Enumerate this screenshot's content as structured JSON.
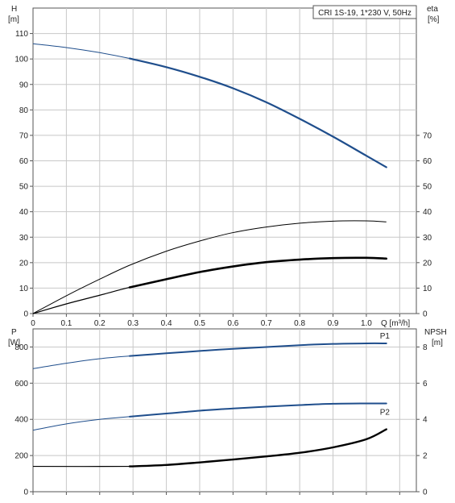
{
  "chart_data": [
    {
      "type": "line",
      "name": "head-efficiency",
      "title": "CRI 1S-19, 1*230 V, 50Hz",
      "xlabel": "Q [m³/h]",
      "ylabel_left_top": "H",
      "ylabel_left_bottom": "[m]",
      "ylabel_right_top": "eta",
      "ylabel_right_bottom": "[%]",
      "xlim": [
        0,
        1.15
      ],
      "ylim_left": [
        0,
        120
      ],
      "ylim_right": [
        0,
        120
      ],
      "x_ticks": [
        "0",
        "0.1",
        "0.2",
        "0.3",
        "0.4",
        "0.5",
        "0.6",
        "0.7",
        "0.8",
        "0.9",
        "1.0"
      ],
      "y_ticks_left": [
        "0",
        "10",
        "20",
        "30",
        "40",
        "50",
        "60",
        "70",
        "80",
        "90",
        "100",
        "110"
      ],
      "y_ticks_right": [
        "0",
        "10",
        "20",
        "30",
        "40",
        "50",
        "60",
        "70"
      ],
      "grid": true,
      "series": [
        {
          "role": "head",
          "color": "#1f4e8c",
          "axis": "left",
          "points": [
            [
              0.0,
              106
            ],
            [
              0.1,
              104.5
            ],
            [
              0.2,
              102.5
            ],
            [
              0.29,
              100.2
            ],
            [
              0.4,
              96.8
            ],
            [
              0.5,
              93.0
            ],
            [
              0.6,
              88.5
            ],
            [
              0.7,
              83.0
            ],
            [
              0.8,
              76.5
            ],
            [
              0.9,
              69.5
            ],
            [
              1.0,
              62.0
            ],
            [
              1.06,
              57.5
            ]
          ],
          "duty_from": 0.29
        },
        {
          "role": "efficiency-thin",
          "color": "#000000",
          "axis": "right",
          "points": [
            [
              0.0,
              0
            ],
            [
              0.1,
              7.0
            ],
            [
              0.2,
              13.5
            ],
            [
              0.29,
              19.0
            ],
            [
              0.4,
              24.5
            ],
            [
              0.5,
              28.5
            ],
            [
              0.6,
              31.8
            ],
            [
              0.7,
              34.0
            ],
            [
              0.8,
              35.5
            ],
            [
              0.9,
              36.3
            ],
            [
              1.0,
              36.4
            ],
            [
              1.06,
              36.0
            ]
          ],
          "duty_from": 1.2
        },
        {
          "role": "efficiency-thick",
          "color": "#000000",
          "axis": "right",
          "points": [
            [
              0.0,
              0
            ],
            [
              0.1,
              3.8
            ],
            [
              0.2,
              7.2
            ],
            [
              0.29,
              10.3
            ],
            [
              0.4,
              13.5
            ],
            [
              0.5,
              16.3
            ],
            [
              0.6,
              18.5
            ],
            [
              0.7,
              20.2
            ],
            [
              0.8,
              21.2
            ],
            [
              0.9,
              21.8
            ],
            [
              1.0,
              21.9
            ],
            [
              1.06,
              21.6
            ]
          ],
          "duty_from": 0.29
        }
      ]
    },
    {
      "type": "line",
      "name": "power-npsh",
      "xlim": [
        0,
        1.15
      ],
      "ylabel_left_top": "P",
      "ylabel_left_bottom": "[W]",
      "ylabel_right_top": "NPSH",
      "ylabel_right_bottom": "[m]",
      "ylim_left": [
        0,
        900
      ],
      "ylim_right": [
        0,
        9
      ],
      "y_ticks_left": [
        "0",
        "200",
        "400",
        "600",
        "800"
      ],
      "y_ticks_right": [
        "0",
        "2",
        "4",
        "6",
        "8"
      ],
      "grid": true,
      "series": [
        {
          "name": "P1",
          "color": "#1f4e8c",
          "axis": "left",
          "points": [
            [
              0.0,
              680
            ],
            [
              0.1,
              710
            ],
            [
              0.2,
              735
            ],
            [
              0.29,
              750
            ],
            [
              0.4,
              765
            ],
            [
              0.5,
              778
            ],
            [
              0.6,
              790
            ],
            [
              0.7,
              800
            ],
            [
              0.8,
              810
            ],
            [
              0.9,
              817
            ],
            [
              1.0,
              820
            ],
            [
              1.06,
              820
            ]
          ],
          "duty_from": 0.29
        },
        {
          "name": "P2",
          "color": "#1f4e8c",
          "axis": "left",
          "points": [
            [
              0.0,
              340
            ],
            [
              0.1,
              375
            ],
            [
              0.2,
              400
            ],
            [
              0.29,
              415
            ],
            [
              0.4,
              432
            ],
            [
              0.5,
              448
            ],
            [
              0.6,
              460
            ],
            [
              0.7,
              470
            ],
            [
              0.8,
              479
            ],
            [
              0.9,
              486
            ],
            [
              1.0,
              488
            ],
            [
              1.06,
              488
            ]
          ],
          "duty_from": 0.29
        },
        {
          "role": "npsh",
          "color": "#000000",
          "axis": "right",
          "points": [
            [
              0.0,
              1.4
            ],
            [
              0.29,
              1.4
            ],
            [
              0.4,
              1.48
            ],
            [
              0.5,
              1.62
            ],
            [
              0.6,
              1.78
            ],
            [
              0.7,
              1.95
            ],
            [
              0.8,
              2.15
            ],
            [
              0.9,
              2.45
            ],
            [
              1.0,
              2.9
            ],
            [
              1.06,
              3.45
            ]
          ],
          "duty_from": 0.29
        }
      ]
    }
  ]
}
